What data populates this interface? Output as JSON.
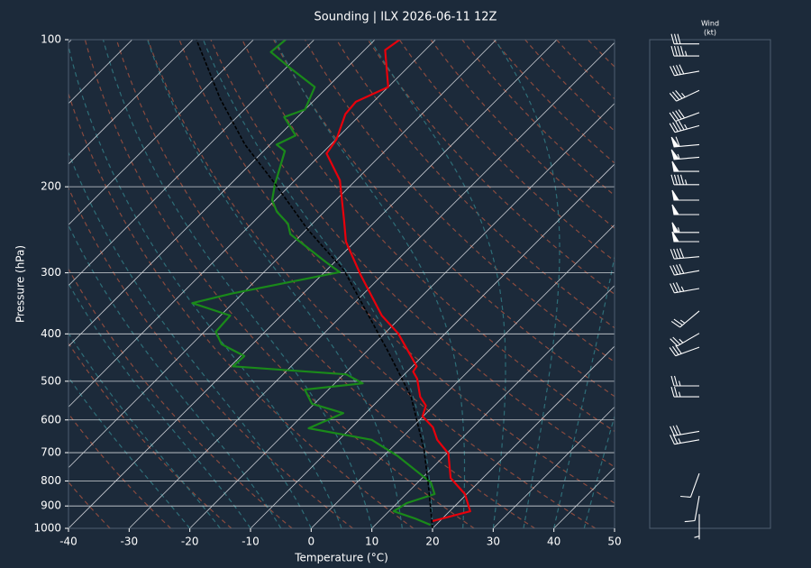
{
  "chart_data": {
    "type": "skewt",
    "title": "Sounding | ILX 2026-06-11 12Z",
    "x_label": "Temperature (°C)",
    "y_label": "Pressure (hPa)",
    "xlim": [
      -40,
      50
    ],
    "xticks": [
      -40,
      -30,
      -20,
      -10,
      0,
      10,
      20,
      30,
      40,
      50
    ],
    "ylim": [
      1000,
      100
    ],
    "yticks": [
      1000,
      900,
      800,
      700,
      600,
      500,
      400,
      300,
      200,
      100
    ],
    "yscale": "log",
    "grid": true,
    "series": [
      {
        "color": "#e8000b",
        "dash": false,
        "pressure": [
          966,
          923,
          851,
          789,
          703,
          659,
          621,
          590,
          561,
          538,
          494,
          478,
          466,
          399,
          367,
          303,
          259,
          235,
          194,
          171,
          160,
          142,
          134,
          125,
          105,
          100
        ],
        "values": [
          18.8,
          23.4,
          19.7,
          14.7,
          10.3,
          6.2,
          3.4,
          -0.1,
          -1.3,
          -3.7,
          -7.2,
          -9,
          -9.3,
          -17.8,
          -23.4,
          -33.6,
          -41.5,
          -45.2,
          -52.6,
          -59.2,
          -59.9,
          -62.6,
          -62.9,
          -60,
          -66.6,
          -65.9
        ]
      },
      {
        "color": "#1a8a1a",
        "dash": false,
        "pressure": [
          984,
          954,
          923,
          888,
          851,
          806,
          710,
          659,
          624,
          581,
          556,
          520,
          505,
          484,
          466,
          444,
          420,
          396,
          367,
          346,
          331,
          299,
          285,
          250,
          238,
          225,
          213,
          198,
          169,
          164,
          157,
          144,
          139,
          125,
          114,
          106,
          100
        ],
        "values": [
          19.1,
          15.4,
          10.8,
          11.6,
          14.7,
          12.2,
          2.2,
          -4.6,
          -16.9,
          -13.7,
          -20.4,
          -23.9,
          -15.4,
          -19.6,
          -39.6,
          -39.4,
          -45.1,
          -48.1,
          -48.4,
          -56.7,
          -51.8,
          -37.5,
          -41.5,
          -51.9,
          -54,
          -57.8,
          -60.5,
          -62.6,
          -66.5,
          -68.9,
          -67.3,
          -72.2,
          -70,
          -72.1,
          -79.5,
          -85.1,
          -84.7
        ]
      },
      {
        "color": "#000000",
        "dash": true,
        "pressure": [
          1000,
          822,
          693,
          538,
          494,
          435,
          297,
          245,
          194,
          164,
          132,
          100
        ],
        "values": [
          20,
          12.5,
          5.8,
          -5.2,
          -9.7,
          -16.4,
          -37,
          -49.7,
          -63.7,
          -74.1,
          -85.8,
          -99.4
        ]
      }
    ],
    "wind_title": [
      "Wind",
      "(kt)"
    ],
    "winds": {
      "pressure": [
        935,
        858,
        772,
        659,
        633,
        538,
        511,
        426,
        399,
        359,
        323,
        297,
        278,
        259,
        248,
        228,
        213,
        198,
        186,
        174,
        164,
        150,
        141,
        127,
        116,
        108,
        102
      ],
      "direction": [
        180,
        190,
        200,
        260,
        260,
        270,
        270,
        250,
        240,
        230,
        260,
        260,
        265,
        270,
        270,
        270,
        270,
        270,
        270,
        265,
        265,
        255,
        250,
        245,
        260,
        270,
        270
      ],
      "speed": [
        5,
        10,
        10,
        25,
        30,
        25,
        25,
        30,
        25,
        25,
        35,
        40,
        40,
        50,
        55,
        50,
        50,
        45,
        50,
        55,
        60,
        45,
        40,
        35,
        40,
        45,
        30
      ]
    }
  }
}
